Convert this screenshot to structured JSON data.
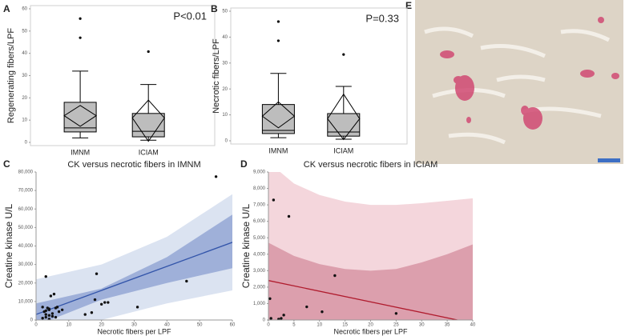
{
  "chart_data": [
    {
      "type": "box",
      "panel_label": "A",
      "ylabel": "Regenerating fibers/LPF",
      "annotation": "P<0.01",
      "categories": [
        "IMNM",
        "ICIAM"
      ],
      "ylim": [
        0,
        60
      ],
      "yticks": [
        0,
        10,
        20,
        30,
        40,
        50,
        60
      ],
      "color": "#bdbdbd",
      "boxes": [
        {
          "whislo": 2,
          "q1": 4.7,
          "med": 6.5,
          "q3": 18,
          "whishi": 32,
          "mean": 12,
          "mean_ci": [
            7.2,
            16.6
          ],
          "fliers": [
            47,
            55.6
          ]
        },
        {
          "whislo": 1,
          "q1": 2.5,
          "med": 5,
          "q3": 13,
          "whishi": 26,
          "mean": 11,
          "mean_ci": [
            0.5,
            19
          ],
          "fliers": [
            40.8
          ]
        }
      ]
    },
    {
      "type": "box",
      "panel_label": "B",
      "ylabel": "Necrotic fibers/LPF",
      "annotation": "P=0.33",
      "categories": [
        "IMNM",
        "ICIAM"
      ],
      "ylim": [
        0,
        50
      ],
      "yticks": [
        0,
        10,
        20,
        30,
        40,
        50
      ],
      "color": "#bdbdbd",
      "boxes": [
        {
          "whislo": 1.2,
          "q1": 2.8,
          "med": 4,
          "q3": 14,
          "whishi": 26,
          "mean": 9.5,
          "mean_ci": [
            5,
            15
          ],
          "fliers": [
            38.6,
            46
          ]
        },
        {
          "whislo": 0.6,
          "q1": 1.8,
          "med": 3.4,
          "q3": 10.5,
          "whishi": 21,
          "mean": 8.5,
          "mean_ci": [
            0.5,
            18
          ],
          "fliers": [
            33.3
          ]
        }
      ]
    },
    {
      "type": "scatter",
      "panel_label": "C",
      "title": "CK versus necrotic fibers  in IMNM",
      "xlabel": "Necrotic fibers per LPF",
      "ylabel": "Creatine kinase U/L",
      "xlim": [
        0,
        60
      ],
      "xticks": [
        0,
        10,
        20,
        30,
        40,
        50,
        60
      ],
      "ylim": [
        0,
        80000
      ],
      "yticks": [
        0,
        {
          "value": 10000,
          "label": "10,000"
        },
        {
          "value": 20000,
          "label": "20,000"
        },
        {
          "value": 30000,
          "label": "30,000"
        },
        {
          "value": 40000,
          "label": "40,000"
        },
        {
          "value": 50000,
          "label": "50,000"
        },
        {
          "value": 60000,
          "label": "60,000"
        },
        {
          "value": 70000,
          "label": "70,000"
        },
        {
          "value": 80000,
          "label": "80,000"
        }
      ],
      "color": "#111111",
      "x": [
        2.5,
        3,
        3.5,
        2,
        4,
        3,
        4,
        5,
        3,
        4.5,
        5.5,
        4,
        5,
        6,
        6.5,
        7,
        8,
        3,
        4,
        15,
        17,
        18,
        18.5,
        20,
        21,
        22,
        31,
        46,
        55,
        2,
        6
      ],
      "values": [
        4500,
        5000,
        6500,
        7000,
        5500,
        3000,
        2500,
        3500,
        23500,
        13000,
        14000,
        6000,
        2000,
        6500,
        7000,
        4500,
        5500,
        1500,
        500,
        3000,
        4000,
        11000,
        25000,
        8500,
        9500,
        9500,
        7000,
        21000,
        77500,
        1000,
        1500
      ],
      "fit": {
        "x": [
          0,
          60
        ],
        "y": [
          3000,
          42000
        ],
        "color": "#3355aa"
      },
      "bands": [
        {
          "x": [
            0,
            20,
            40,
            60
          ],
          "upper": [
            22000,
            30000,
            45000,
            68000
          ],
          "lower": [
            -16000,
            0,
            9000,
            16000
          ],
          "color": "#dbe3f1"
        },
        {
          "x": [
            0,
            20,
            40,
            60
          ],
          "upper": [
            9000,
            17000,
            34000,
            57000
          ],
          "lower": [
            -3000,
            11000,
            20000,
            28000
          ],
          "color": "#9fb0d9"
        }
      ]
    },
    {
      "type": "scatter",
      "panel_label": "D",
      "title": "CK versus necrotic fibers in ICIAM",
      "xlabel": "Necrotic fibers per LPF",
      "ylabel": "Creatine kinase U/L",
      "xlim": [
        0,
        40
      ],
      "xticks": [
        0,
        5,
        10,
        15,
        20,
        25,
        30,
        35,
        40
      ],
      "ylim": [
        0,
        9000
      ],
      "yticks": [
        0,
        {
          "value": 1000,
          "label": "1,000"
        },
        {
          "value": 2000,
          "label": "2,000"
        },
        {
          "value": 3000,
          "label": "3,000"
        },
        {
          "value": 4000,
          "label": "4,000"
        },
        {
          "value": 5000,
          "label": "5,000"
        },
        {
          "value": 6000,
          "label": "6,000"
        },
        {
          "value": 7000,
          "label": "7,000"
        },
        {
          "value": 8000,
          "label": "8,000"
        },
        {
          "value": 9000,
          "label": "9,000"
        }
      ],
      "color": "#111111",
      "x": [
        1,
        4,
        0.3,
        2,
        2.5,
        3,
        7.5,
        10.5,
        13,
        25,
        0.5
      ],
      "values": [
        7300,
        6300,
        1300,
        50,
        100,
        300,
        800,
        500,
        2700,
        400,
        100
      ],
      "fit": {
        "x": [
          0,
          37
        ],
        "y": [
          2400,
          0
        ],
        "color": "#b01c2e"
      },
      "bands": [
        {
          "x": [
            0,
            5,
            10,
            15,
            20,
            25,
            30,
            35,
            40
          ],
          "upper": [
            9600,
            8300,
            7600,
            7200,
            7000,
            7000,
            7100,
            7250,
            7400
          ],
          "color": "#f4d6dc"
        },
        {
          "x": [
            0,
            5,
            10,
            15,
            20,
            25,
            30,
            35,
            40
          ],
          "upper": [
            4700,
            3900,
            3400,
            3100,
            3000,
            3100,
            3500,
            4000,
            4600
          ],
          "color": "#dc9fad"
        }
      ]
    }
  ],
  "image_panel": {
    "label": "E"
  }
}
